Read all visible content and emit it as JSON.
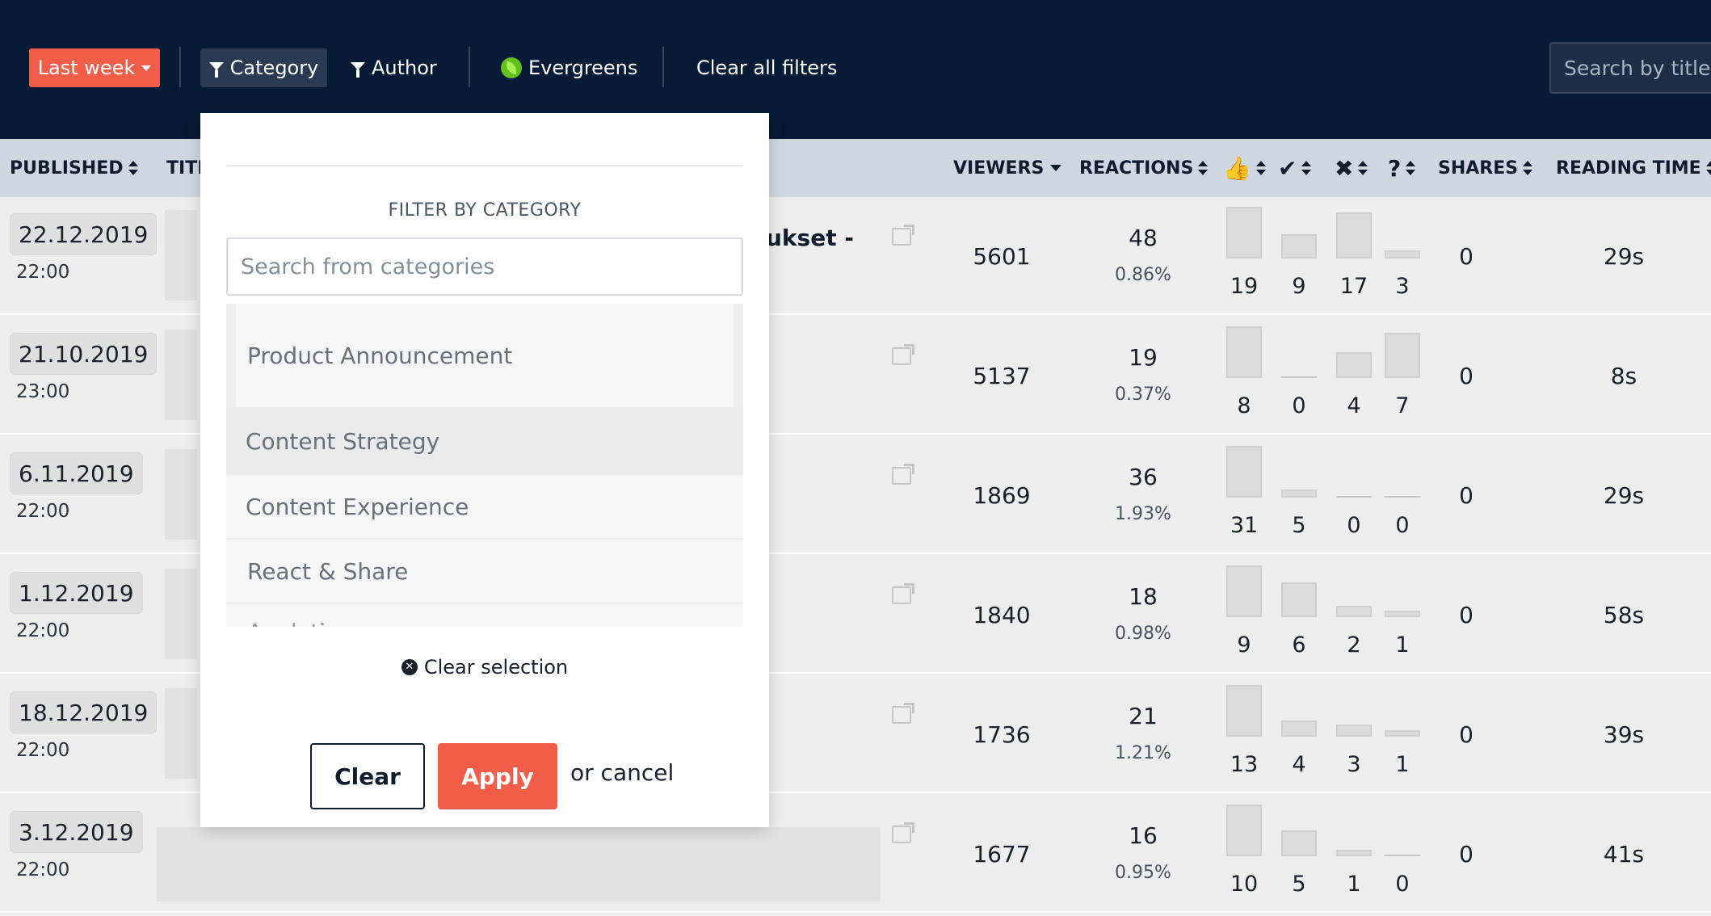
{
  "toolbar": {
    "period_label": "Last week",
    "category_label": "Category",
    "author_label": "Author",
    "evergreens_label": "Evergreens",
    "clear_all_label": "Clear all filters",
    "search_placeholder": "Search by title..."
  },
  "table": {
    "headers": {
      "published": "PUBLISHED",
      "title": "TITLE",
      "viewers": "VIEWERS",
      "reactions": "REACTIONS",
      "thumbs": "👍",
      "check": "✔",
      "cross": "✖",
      "question": "?",
      "shares": "SHARES",
      "reading_time": "READING TIME"
    },
    "rows": [
      {
        "date": "22.12.2019",
        "time": "22:00",
        "title_fragment": "ukset -",
        "viewers": "5601",
        "reactions": "48",
        "reaction_pct": "0.86%",
        "r1": "19",
        "r2": "9",
        "r3": "17",
        "r4": "3",
        "shares": "0",
        "reading_time": "29s"
      },
      {
        "date": "21.10.2019",
        "time": "23:00",
        "title_fragment": "",
        "viewers": "5137",
        "reactions": "19",
        "reaction_pct": "0.37%",
        "r1": "8",
        "r2": "0",
        "r3": "4",
        "r4": "7",
        "shares": "0",
        "reading_time": "8s"
      },
      {
        "date": "6.11.2019",
        "time": "22:00",
        "title_fragment": "",
        "viewers": "1869",
        "reactions": "36",
        "reaction_pct": "1.93%",
        "r1": "31",
        "r2": "5",
        "r3": "0",
        "r4": "0",
        "shares": "0",
        "reading_time": "29s"
      },
      {
        "date": "1.12.2019",
        "time": "22:00",
        "title_fragment": "",
        "viewers": "1840",
        "reactions": "18",
        "reaction_pct": "0.98%",
        "r1": "9",
        "r2": "6",
        "r3": "2",
        "r4": "1",
        "shares": "0",
        "reading_time": "58s"
      },
      {
        "date": "18.12.2019",
        "time": "22:00",
        "title_fragment": "",
        "viewers": "1736",
        "reactions": "21",
        "reaction_pct": "1.21%",
        "r1": "13",
        "r2": "4",
        "r3": "3",
        "r4": "1",
        "shares": "0",
        "reading_time": "39s"
      },
      {
        "date": "3.12.2019",
        "time": "22:00",
        "title_fragment": "",
        "viewers": "1677",
        "reactions": "16",
        "reaction_pct": "0.95%",
        "r1": "10",
        "r2": "5",
        "r3": "1",
        "r4": "0",
        "shares": "0",
        "reading_time": "41s"
      }
    ]
  },
  "popover": {
    "heading": "FILTER BY CATEGORY",
    "search_placeholder": "Search from categories",
    "options": [
      "Product Announcement",
      "Content Strategy",
      "Content Experience",
      "React & Share",
      "Analytics"
    ],
    "clear_selection_label": "Clear selection",
    "clear_button": "Clear",
    "apply_button": "Apply",
    "or_cancel": "or cancel"
  },
  "colors": {
    "topbar": "#051b35",
    "accent": "#f25d49",
    "header_row": "#cfd7e1",
    "evergreen": "#64c11b"
  }
}
